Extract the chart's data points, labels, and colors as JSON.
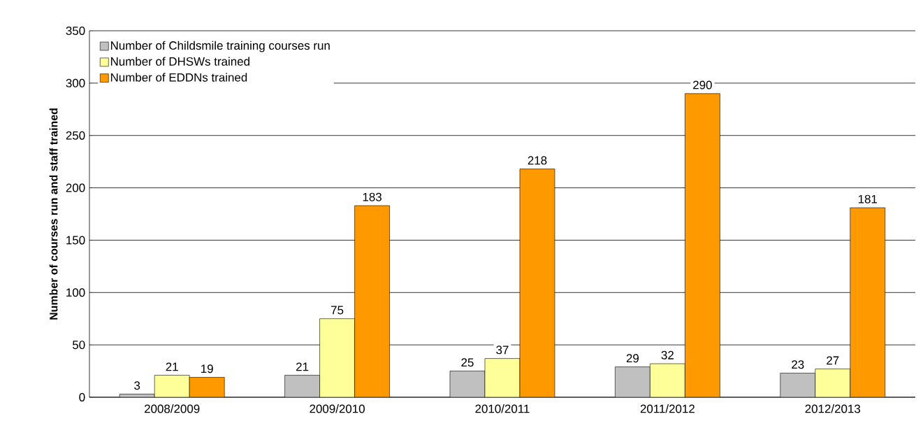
{
  "chart_data": {
    "type": "bar",
    "ylabel": "Number of courses run and staff trained",
    "categories": [
      "2008/2009",
      "2009/2010",
      "2010/2011",
      "2011/2012",
      "2012/2013"
    ],
    "series": [
      {
        "name": "Number of Childsmile training  courses run",
        "color": "#c0c0c0",
        "values": [
          3,
          21,
          25,
          29,
          23
        ]
      },
      {
        "name": "Number of DHSWs trained",
        "color": "#ffff99",
        "values": [
          21,
          75,
          37,
          32,
          27
        ]
      },
      {
        "name": "Number of EDDNs trained",
        "color": "#ff9900",
        "values": [
          19,
          183,
          218,
          290,
          181
        ]
      }
    ],
    "ylim": [
      0,
      350
    ],
    "yticks": [
      0,
      50,
      100,
      150,
      200,
      250,
      300,
      350
    ],
    "grid": "y",
    "legend": "top left",
    "data_labels": true
  }
}
